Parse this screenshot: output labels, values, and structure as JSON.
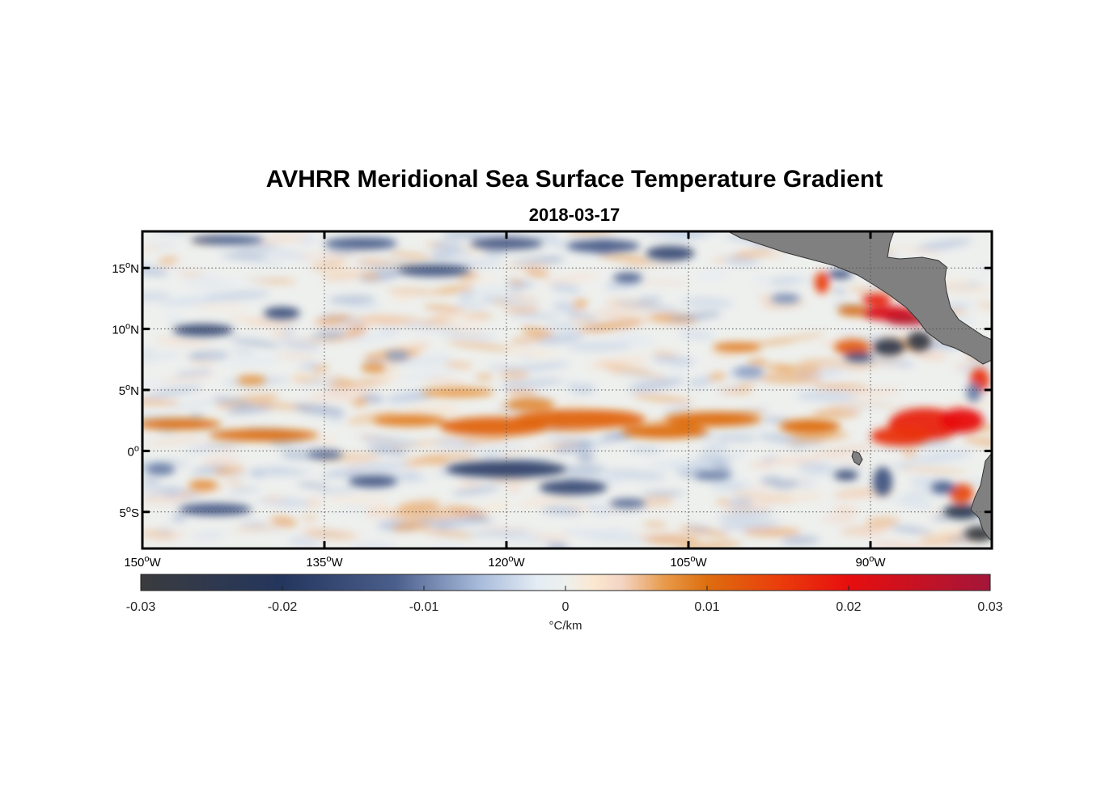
{
  "title": "AVHRR Meridional Sea Surface Temperature Gradient",
  "subtitle": "2018-03-17",
  "map": {
    "lon_range": [
      -150,
      -80
    ],
    "lat_range": [
      -8,
      18
    ],
    "lon_ticks": [
      {
        "value": -150,
        "deg": "150",
        "hemi": "W"
      },
      {
        "value": -135,
        "deg": "135",
        "hemi": "W"
      },
      {
        "value": -120,
        "deg": "120",
        "hemi": "W"
      },
      {
        "value": -105,
        "deg": "105",
        "hemi": "W"
      },
      {
        "value": -90,
        "deg": "90",
        "hemi": "W"
      }
    ],
    "lat_ticks": [
      {
        "value": 15,
        "deg": "15",
        "hemi": "N"
      },
      {
        "value": 10,
        "deg": "10",
        "hemi": "N"
      },
      {
        "value": 5,
        "deg": "5",
        "hemi": "N"
      },
      {
        "value": 0,
        "deg": "0",
        "hemi": ""
      },
      {
        "value": -5,
        "deg": "5",
        "hemi": "S"
      }
    ],
    "degree_symbol": "o",
    "colors": {
      "land": "#808080",
      "ocean_neutral": "#eef0ee",
      "strong_negative": "#2b3d63",
      "strong_positive": "#d2161e",
      "orange": "#de6b16"
    }
  },
  "features": [
    {
      "type": "pos",
      "lon": -147,
      "lat": 2.2,
      "rlon": 3.5,
      "rlat": 0.45,
      "amp": 0.01
    },
    {
      "type": "pos",
      "lon": -140,
      "lat": 1.3,
      "rlon": 4.5,
      "rlat": 0.5,
      "amp": 0.01
    },
    {
      "type": "pos",
      "lon": -141,
      "lat": 5.8,
      "rlon": 1.2,
      "rlat": 0.4,
      "amp": 0.007
    },
    {
      "type": "pos",
      "lon": -131,
      "lat": 6.8,
      "rlon": 1.0,
      "rlat": 0.4,
      "amp": 0.007
    },
    {
      "type": "pos",
      "lon": -128,
      "lat": 2.5,
      "rlon": 3.0,
      "rlat": 0.5,
      "amp": 0.009
    },
    {
      "type": "pos",
      "lon": -124,
      "lat": 4.8,
      "rlon": 3.0,
      "rlat": 0.4,
      "amp": 0.007
    },
    {
      "type": "pos",
      "lon": -121,
      "lat": 2.0,
      "rlon": 4.5,
      "rlat": 0.8,
      "amp": 0.011
    },
    {
      "type": "pos",
      "lon": -114,
      "lat": 2.6,
      "rlon": 5.5,
      "rlat": 0.8,
      "amp": 0.011
    },
    {
      "type": "pos",
      "lon": -118,
      "lat": 3.8,
      "rlon": 2.0,
      "rlat": 0.5,
      "amp": 0.008
    },
    {
      "type": "pos",
      "lon": -107,
      "lat": 1.6,
      "rlon": 3.5,
      "rlat": 0.6,
      "amp": 0.01
    },
    {
      "type": "pos",
      "lon": -103,
      "lat": 2.6,
      "rlon": 4.0,
      "rlat": 0.6,
      "amp": 0.01
    },
    {
      "type": "pos",
      "lon": -95,
      "lat": 2.0,
      "rlon": 2.5,
      "rlat": 0.6,
      "amp": 0.01
    },
    {
      "type": "pos",
      "lon": -101,
      "lat": 8.5,
      "rlon": 2.0,
      "rlat": 0.4,
      "amp": 0.009
    },
    {
      "type": "pos",
      "lon": -91.5,
      "lat": 11.5,
      "rlon": 1.2,
      "rlat": 0.4,
      "amp": 0.01
    },
    {
      "type": "pos",
      "lon": -89.5,
      "lat": 12.4,
      "rlon": 1.2,
      "rlat": 0.5,
      "amp": 0.018
    },
    {
      "type": "pos",
      "lon": -88.5,
      "lat": 11.3,
      "rlon": 2.2,
      "rlat": 0.6,
      "amp": 0.022
    },
    {
      "type": "pos",
      "lon": -87,
      "lat": 10.8,
      "rlon": 1.8,
      "rlat": 0.5,
      "amp": 0.027
    },
    {
      "type": "pos",
      "lon": -94,
      "lat": 13.8,
      "rlon": 0.6,
      "rlat": 0.9,
      "amp": 0.015
    },
    {
      "type": "pos",
      "lon": -91.5,
      "lat": 8.5,
      "rlon": 1.5,
      "rlat": 0.6,
      "amp": 0.012
    },
    {
      "type": "pos",
      "lon": -85.5,
      "lat": 2.2,
      "rlon": 3.0,
      "rlat": 1.3,
      "amp": 0.018
    },
    {
      "type": "pos",
      "lon": -87.5,
      "lat": 1.2,
      "rlon": 2.5,
      "rlat": 0.8,
      "amp": 0.016
    },
    {
      "type": "pos",
      "lon": -82.5,
      "lat": 2.5,
      "rlon": 1.8,
      "rlat": 1.0,
      "amp": 0.02
    },
    {
      "type": "pos",
      "lon": -81,
      "lat": 5.8,
      "rlon": 0.8,
      "rlat": 1.0,
      "amp": 0.016
    },
    {
      "type": "pos",
      "lon": -82.5,
      "lat": -3.5,
      "rlon": 1.0,
      "rlat": 0.8,
      "amp": 0.014
    },
    {
      "type": "pos",
      "lon": -145,
      "lat": -2.8,
      "rlon": 1.2,
      "rlat": 0.4,
      "amp": 0.008
    },
    {
      "type": "neg",
      "lon": -145,
      "lat": 9.9,
      "rlon": 2.5,
      "rlat": 0.5,
      "amp": -0.016
    },
    {
      "type": "neg",
      "lon": -138.5,
      "lat": 11.3,
      "rlon": 1.5,
      "rlat": 0.5,
      "amp": -0.015
    },
    {
      "type": "neg",
      "lon": -143,
      "lat": 17.3,
      "rlon": 3.0,
      "rlat": 0.4,
      "amp": -0.012
    },
    {
      "type": "neg",
      "lon": -132,
      "lat": 17.0,
      "rlon": 3.0,
      "rlat": 0.5,
      "amp": -0.012
    },
    {
      "type": "neg",
      "lon": -126,
      "lat": 14.8,
      "rlon": 3.0,
      "rlat": 0.5,
      "amp": -0.014
    },
    {
      "type": "neg",
      "lon": -120,
      "lat": 17.0,
      "rlon": 3.0,
      "rlat": 0.5,
      "amp": -0.013
    },
    {
      "type": "neg",
      "lon": -112,
      "lat": 16.8,
      "rlon": 3.0,
      "rlat": 0.5,
      "amp": -0.013
    },
    {
      "type": "neg",
      "lon": -106.5,
      "lat": 16.2,
      "rlon": 2.0,
      "rlat": 0.6,
      "amp": -0.016
    },
    {
      "type": "neg",
      "lon": -110,
      "lat": 14.2,
      "rlon": 1.2,
      "rlat": 0.4,
      "amp": -0.012
    },
    {
      "type": "neg",
      "lon": -120,
      "lat": -1.5,
      "rlon": 5.0,
      "rlat": 0.7,
      "amp": -0.018
    },
    {
      "type": "neg",
      "lon": -114.5,
      "lat": -3.0,
      "rlon": 2.8,
      "rlat": 0.6,
      "amp": -0.016
    },
    {
      "type": "neg",
      "lon": -131,
      "lat": -2.5,
      "rlon": 2.0,
      "rlat": 0.5,
      "amp": -0.013
    },
    {
      "type": "neg",
      "lon": -135,
      "lat": -0.3,
      "rlon": 1.5,
      "rlat": 0.4,
      "amp": -0.011
    },
    {
      "type": "neg",
      "lon": -144,
      "lat": -4.8,
      "rlon": 3.0,
      "rlat": 0.5,
      "amp": -0.013
    },
    {
      "type": "neg",
      "lon": -148.5,
      "lat": -1.5,
      "rlon": 1.2,
      "rlat": 0.5,
      "amp": -0.01
    },
    {
      "type": "neg",
      "lon": -110,
      "lat": -4.3,
      "rlon": 1.5,
      "rlat": 0.4,
      "amp": -0.011
    },
    {
      "type": "neg",
      "lon": -103,
      "lat": -2.0,
      "rlon": 1.5,
      "rlat": 0.4,
      "amp": -0.01
    },
    {
      "type": "neg",
      "lon": -88.5,
      "lat": 8.5,
      "rlon": 1.3,
      "rlat": 0.7,
      "amp": -0.026
    },
    {
      "type": "neg",
      "lon": -86,
      "lat": 9.0,
      "rlon": 1.0,
      "rlat": 0.8,
      "amp": -0.028
    },
    {
      "type": "neg",
      "lon": -91,
      "lat": 7.7,
      "rlon": 1.2,
      "rlat": 0.4,
      "amp": -0.016
    },
    {
      "type": "neg",
      "lon": -92.5,
      "lat": 14.5,
      "rlon": 1.0,
      "rlat": 0.4,
      "amp": -0.013
    },
    {
      "type": "neg",
      "lon": -92,
      "lat": -2.0,
      "rlon": 1.0,
      "rlat": 0.4,
      "amp": -0.016
    },
    {
      "type": "neg",
      "lon": -89,
      "lat": -2.5,
      "rlon": 0.8,
      "rlat": 1.2,
      "amp": -0.014
    },
    {
      "type": "neg",
      "lon": -84,
      "lat": -3.0,
      "rlon": 1.0,
      "rlat": 0.5,
      "amp": -0.012
    },
    {
      "type": "neg",
      "lon": -82.5,
      "lat": -5.0,
      "rlon": 1.5,
      "rlat": 0.6,
      "amp": -0.024
    },
    {
      "type": "neg",
      "lon": -81,
      "lat": -6.8,
      "rlon": 1.2,
      "rlat": 0.6,
      "amp": -0.03
    },
    {
      "type": "neg",
      "lon": -81.5,
      "lat": 4.8,
      "rlon": 0.6,
      "rlat": 0.8,
      "amp": -0.01
    },
    {
      "type": "neg",
      "lon": -129,
      "lat": 7.8,
      "rlon": 1.0,
      "rlat": 0.4,
      "amp": -0.008
    },
    {
      "type": "neg",
      "lon": -100,
      "lat": 6.5,
      "rlon": 1.2,
      "rlat": 0.4,
      "amp": -0.008
    },
    {
      "type": "neg",
      "lon": -97,
      "lat": 12.5,
      "rlon": 1.2,
      "rlat": 0.4,
      "amp": -0.009
    }
  ],
  "colorbar": {
    "min": -0.03,
    "max": 0.03,
    "ticks": [
      {
        "value": -0.03,
        "label": "-0.03"
      },
      {
        "value": -0.02,
        "label": "-0.02"
      },
      {
        "value": -0.01,
        "label": "-0.01"
      },
      {
        "value": 0,
        "label": "0"
      },
      {
        "value": 0.01,
        "label": "0.01"
      },
      {
        "value": 0.02,
        "label": "0.02"
      },
      {
        "value": 0.03,
        "label": "0.03"
      }
    ],
    "units": "°C/km",
    "stops": [
      {
        "value": -0.03,
        "color": "#3a3b3e"
      },
      {
        "value": -0.02,
        "color": "#24365e"
      },
      {
        "value": -0.012,
        "color": "#4b5f8c"
      },
      {
        "value": -0.006,
        "color": "#a9bcdc"
      },
      {
        "value": -0.002,
        "color": "#e4ecf4"
      },
      {
        "value": 0,
        "color": "#eef0ee"
      },
      {
        "value": 0.002,
        "color": "#fbe8d0"
      },
      {
        "value": 0.004,
        "color": "#f3d4c4"
      },
      {
        "value": 0.007,
        "color": "#e89a4a"
      },
      {
        "value": 0.01,
        "color": "#dd6e0f"
      },
      {
        "value": 0.015,
        "color": "#ea3e0c"
      },
      {
        "value": 0.02,
        "color": "#e70e0e"
      },
      {
        "value": 0.03,
        "color": "#a3163a"
      }
    ]
  }
}
